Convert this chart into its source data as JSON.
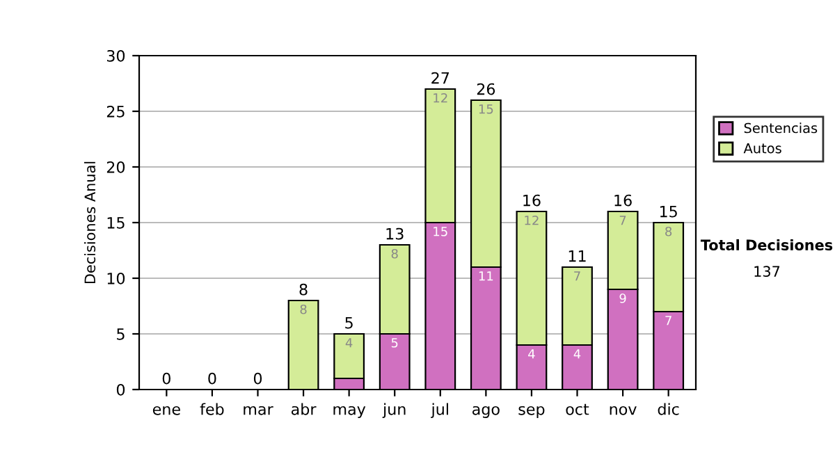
{
  "chart_data": {
    "type": "bar",
    "stacked": true,
    "ylabel": "Decisiones Anual",
    "categories": [
      "ene",
      "feb",
      "mar",
      "abr",
      "may",
      "jun",
      "jul",
      "ago",
      "sep",
      "oct",
      "nov",
      "dic"
    ],
    "series": [
      {
        "name": "Sentencias",
        "color": "#d070c0",
        "values": [
          0,
          0,
          0,
          0,
          1,
          5,
          15,
          11,
          4,
          4,
          9,
          7
        ],
        "value_labels": [
          null,
          null,
          null,
          null,
          null,
          "5",
          "15",
          "11",
          "4",
          "4",
          "9",
          "7"
        ]
      },
      {
        "name": "Autos",
        "color": "#d4ec98",
        "values": [
          0,
          0,
          0,
          8,
          4,
          8,
          12,
          15,
          12,
          7,
          7,
          8
        ],
        "value_labels": [
          null,
          null,
          null,
          "8",
          "4",
          "8",
          "12",
          "15",
          "12",
          "7",
          "7",
          "8"
        ]
      }
    ],
    "totals": [
      "0",
      "0",
      "0",
      "8",
      "5",
      "13",
      "27",
      "26",
      "16",
      "11",
      "16",
      "15"
    ],
    "ylim": [
      0,
      30
    ],
    "yticks": [
      0,
      5,
      10,
      15,
      20,
      25,
      30
    ],
    "grid": "y",
    "legend": "right",
    "annotations": [
      "Total Decisiones",
      "137"
    ]
  }
}
